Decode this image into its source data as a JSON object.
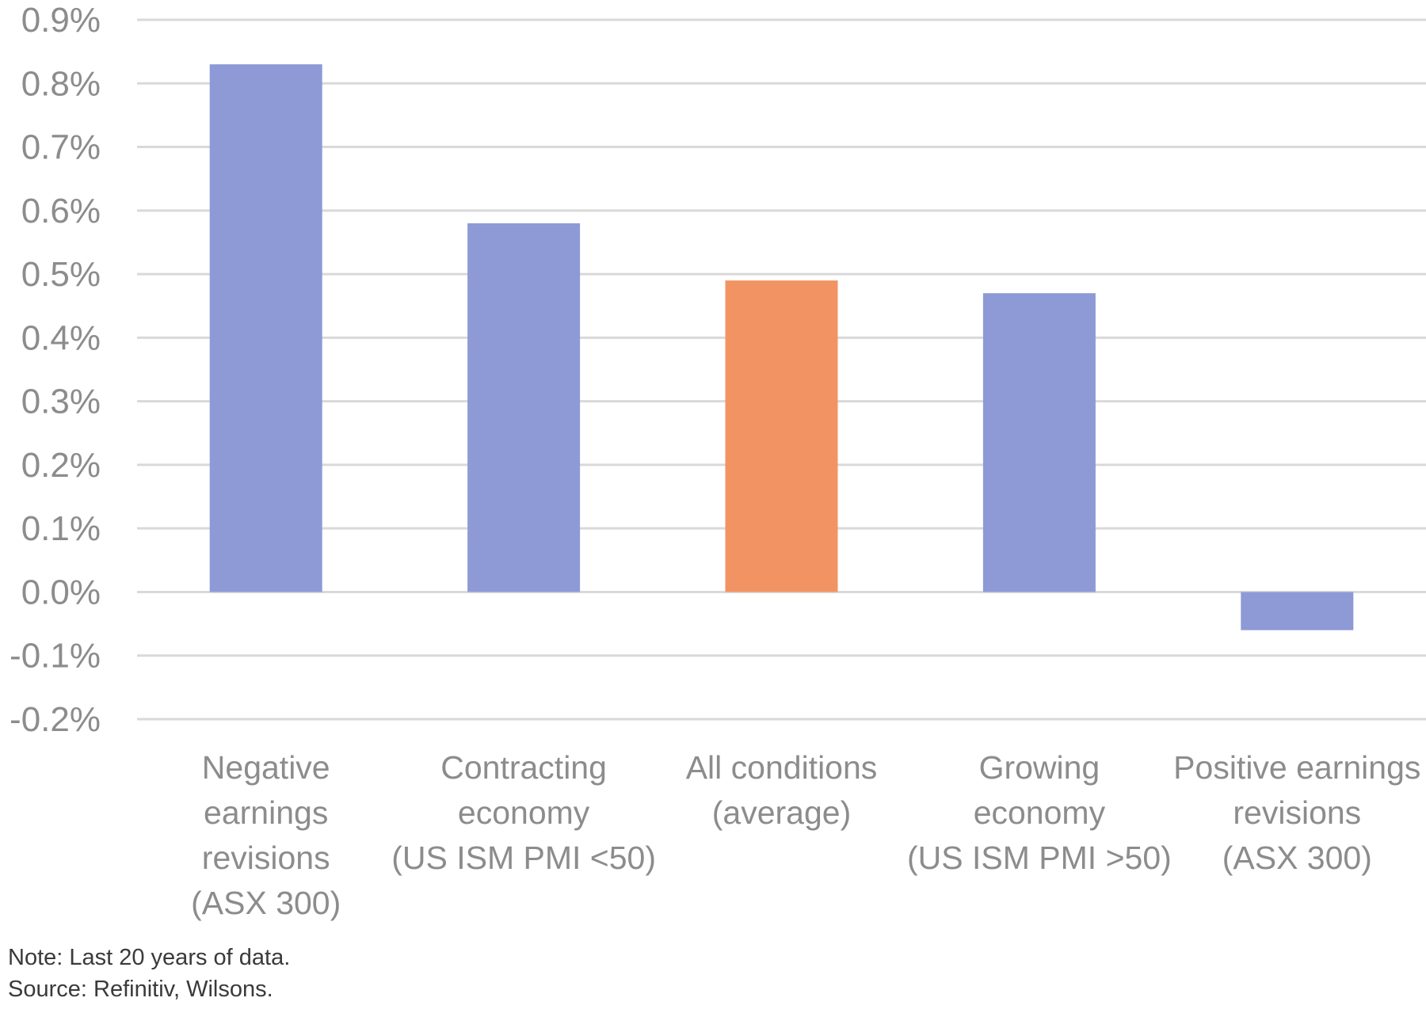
{
  "chart_data": {
    "type": "bar",
    "title": "",
    "xlabel": "",
    "ylabel": "",
    "ylim": [
      -0.2,
      0.9
    ],
    "ytick_step": 0.1,
    "yticks": [
      "0.9%",
      "0.8%",
      "0.7%",
      "0.6%",
      "0.5%",
      "0.4%",
      "0.3%",
      "0.2%",
      "0.1%",
      "0.0%",
      "-0.1%",
      "-0.2%"
    ],
    "grid": true,
    "categories": [
      [
        "Negative",
        "earnings",
        "revisions",
        "(ASX 300)"
      ],
      [
        "Contracting",
        "economy",
        "(US ISM PMI <50)"
      ],
      [
        "All conditions",
        "(average)"
      ],
      [
        "Growing",
        "economy",
        "(US ISM PMI >50)"
      ],
      [
        "Positive earnings",
        "revisions",
        "(ASX 300)"
      ]
    ],
    "values": [
      0.83,
      0.58,
      0.49,
      0.47,
      -0.06
    ],
    "bar_colors": [
      "#8e9ad6",
      "#8e9ad6",
      "#f29364",
      "#8e9ad6",
      "#8e9ad6"
    ]
  },
  "notes": {
    "note": "Note: Last 20 years of data.",
    "source": "Source: Refinitiv, Wilsons."
  },
  "colors": {
    "grid": "#d9d9d9",
    "axis_text": "#8c8c8c",
    "bar_default": "#8e9ad6",
    "bar_highlight": "#f29364"
  }
}
